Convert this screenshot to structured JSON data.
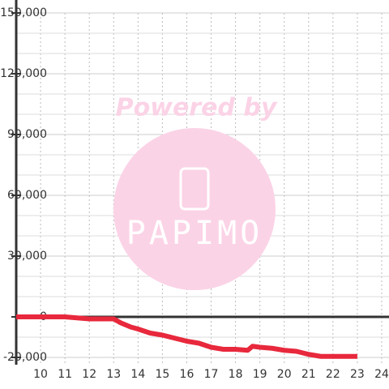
{
  "chart_data": {
    "type": "line",
    "watermark": {
      "top": "Powered by",
      "logo": "PAPIMO"
    },
    "x": [
      9,
      10,
      11,
      11.5,
      12,
      12.5,
      13,
      13.3,
      13.7,
      14,
      14.5,
      15,
      15.5,
      16,
      16.5,
      17,
      17.5,
      18,
      18.5,
      18.7,
      19,
      19.5,
      20,
      20.5,
      21,
      21.5,
      22,
      23
    ],
    "series": [
      {
        "color": "#e8283c",
        "values": [
          0,
          0,
          0,
          -500,
          -1000,
          -1000,
          -1000,
          -3000,
          -5000,
          -6000,
          -8000,
          -9000,
          -10500,
          -12000,
          -13000,
          -15000,
          -16000,
          -16000,
          -16500,
          -14500,
          -15000,
          -15500,
          -16500,
          -17000,
          -18500,
          -19500,
          -19500,
          -19500
        ]
      }
    ],
    "xlim": [
      9,
      24.3
    ],
    "xticks": [
      10,
      11,
      12,
      13,
      14,
      15,
      16,
      17,
      18,
      19,
      20,
      21,
      22,
      23,
      24
    ],
    "ylim": [
      -20000,
      150000
    ],
    "yticks": [
      {
        "value": -20000,
        "label": "-20,000"
      },
      0,
      {
        "value": 30000,
        "label": "30,000"
      },
      {
        "value": 60000,
        "label": "60,000"
      },
      {
        "value": 90000,
        "label": "90,000"
      },
      {
        "value": 120000,
        "label": "120,000"
      },
      {
        "value": 150000,
        "label": "150,000"
      }
    ],
    "yminorticks": [
      -10000,
      10000,
      20000,
      40000,
      50000,
      70000,
      80000,
      100000,
      110000,
      130000,
      140000
    ],
    "grid": true
  }
}
